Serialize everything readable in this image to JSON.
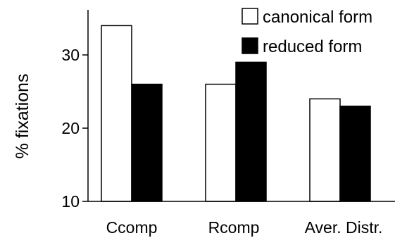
{
  "chart_data": {
    "type": "bar",
    "title": "",
    "xlabel": "",
    "ylabel": "% fixations",
    "categories": [
      "Ccomp",
      "Rcomp",
      "Aver. Distr."
    ],
    "series": [
      {
        "name": "canonical form",
        "values": [
          34,
          26,
          24
        ],
        "color": "#ffffff"
      },
      {
        "name": "reduced form",
        "values": [
          26,
          29,
          23
        ],
        "color": "#000000"
      }
    ],
    "ylim": [
      10,
      35
    ],
    "yticks": [
      10,
      20,
      30
    ],
    "grid": false,
    "legend": "top-right",
    "axis_color": "#000000"
  }
}
